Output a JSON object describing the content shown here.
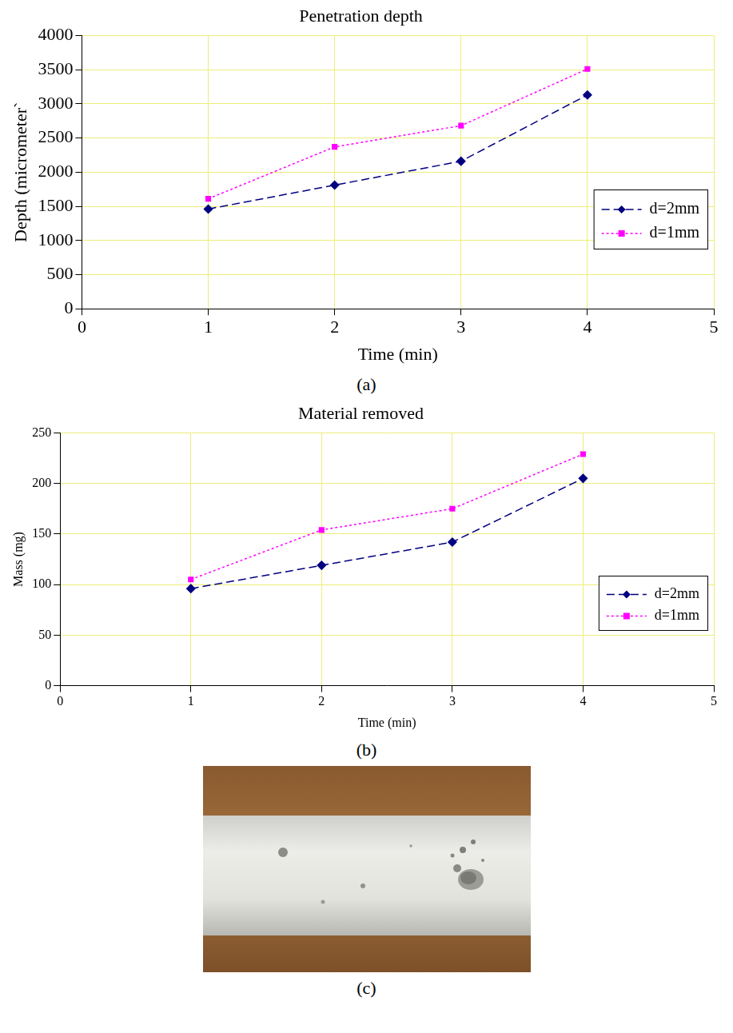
{
  "chart_data": [
    {
      "type": "line",
      "title": "Penetration depth",
      "xlabel": "Time (min)",
      "ylabel": "Depth (micrometer`",
      "caption": "(a)",
      "x": [
        1,
        2,
        3,
        4
      ],
      "series": [
        {
          "name": "d=2mm",
          "color": "#000080",
          "marker": "diamond",
          "line_style": "dashed",
          "values": [
            1460,
            1810,
            2160,
            3130
          ]
        },
        {
          "name": "d=1mm",
          "color": "#ff00ff",
          "marker": "square",
          "line_style": "dotted",
          "values": [
            1610,
            2370,
            2680,
            3510
          ]
        }
      ],
      "xlim": [
        0,
        5
      ],
      "xticks": [
        0,
        1,
        2,
        3,
        4,
        5
      ],
      "ylim": [
        0,
        4000
      ],
      "yticks": [
        0,
        500,
        1000,
        1500,
        2000,
        2500,
        3000,
        3500,
        4000
      ],
      "grid": true,
      "legend": "lower right"
    },
    {
      "type": "line",
      "title": "Material removed",
      "xlabel": "Time (min)",
      "ylabel": "Mass (mg)",
      "caption": "(b)",
      "x": [
        1,
        2,
        3,
        4
      ],
      "series": [
        {
          "name": "d=2mm",
          "color": "#000080",
          "marker": "diamond",
          "line_style": "dashed",
          "values": [
            96,
            119,
            142,
            205
          ]
        },
        {
          "name": "d=1mm",
          "color": "#ff00ff",
          "marker": "square",
          "line_style": "dotted",
          "values": [
            105,
            154,
            175,
            229
          ]
        }
      ],
      "xlim": [
        0,
        5
      ],
      "xticks": [
        0,
        1,
        2,
        3,
        4,
        5
      ],
      "ylim": [
        0,
        250
      ],
      "yticks": [
        0,
        50,
        100,
        150,
        200,
        250
      ],
      "grid": true,
      "legend": "lower right"
    }
  ],
  "photo": {
    "caption": "(c)"
  }
}
